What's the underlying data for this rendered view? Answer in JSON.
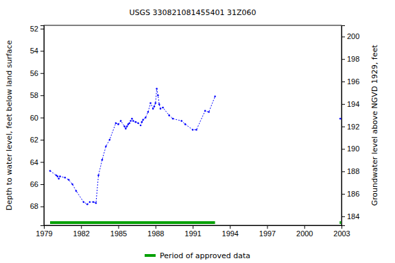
{
  "chart_data": {
    "type": "line",
    "title": "USGS 330821081455401 31Z060",
    "y_label": "Depth to water level, feet below land surface",
    "y2_label": "Groundwater level above NGVD 1929, feet",
    "x": [
      1979.5,
      1980.0,
      1980.1,
      1980.2,
      1980.3,
      1980.7,
      1981.0,
      1981.3,
      1981.6,
      1982.2,
      1982.5,
      1982.7,
      1983.0,
      1983.2,
      1983.4,
      1983.7,
      1984.0,
      1984.3,
      1984.8,
      1985.0,
      1985.2,
      1985.5,
      1985.6,
      1985.7,
      1985.8,
      1985.9,
      1986.0,
      1986.1,
      1986.2,
      1986.4,
      1986.6,
      1986.8,
      1986.9,
      1987.0,
      1987.2,
      1987.4,
      1987.6,
      1987.8,
      1987.9,
      1988.0,
      1988.1,
      1988.2,
      1988.3,
      1988.4,
      1988.6,
      1989.1,
      1989.4,
      1990.1,
      1990.4,
      1991.0,
      1991.3,
      1992.0,
      1992.3,
      1992.8,
      1997.0,
      2002.9
    ],
    "series": [
      {
        "color": "#0000ff",
        "marker": "dot",
        "line_style": "dashed",
        "values": [
          64.8,
          65.2,
          65.3,
          65.5,
          65.3,
          65.4,
          65.6,
          66.0,
          66.6,
          67.6,
          67.8,
          67.6,
          67.6,
          67.7,
          65.2,
          63.8,
          62.6,
          62.0,
          60.5,
          60.6,
          60.3,
          60.8,
          61.0,
          60.8,
          60.6,
          60.5,
          60.3,
          60.1,
          60.3,
          60.4,
          60.5,
          60.7,
          60.4,
          60.2,
          60.0,
          59.5,
          58.7,
          59.2,
          59.0,
          58.7,
          57.4,
          58.0,
          58.8,
          59.2,
          59.1,
          59.8,
          60.1,
          60.3,
          60.6,
          61.1,
          61.1,
          59.4,
          59.5,
          58.1,
          null,
          60.1
        ]
      }
    ],
    "approved": {
      "name": "Period of approved data",
      "color": "#00a000",
      "periods": [
        [
          1979.5,
          1992.8
        ],
        [
          2002.85,
          2002.95
        ]
      ]
    },
    "legend": "bottom",
    "xlim": [
      1979,
      2003
    ],
    "xticks": [
      1979,
      1982,
      1985,
      1988,
      1991,
      1994,
      1997,
      2000,
      2003
    ],
    "ylim": [
      69.7,
      51.7
    ],
    "yticks": [
      52,
      54,
      56,
      58,
      60,
      62,
      64,
      66,
      68
    ],
    "y2lim": [
      183.2,
      201.0
    ],
    "y2ticks": [
      184,
      186,
      188,
      190,
      192,
      194,
      196,
      198,
      200
    ]
  }
}
